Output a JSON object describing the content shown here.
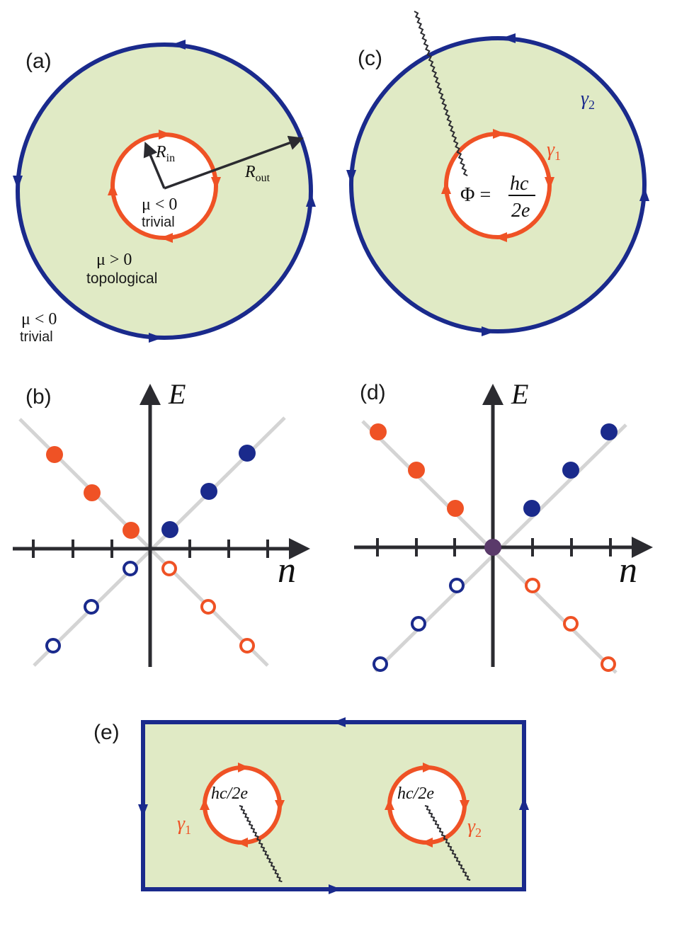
{
  "colors": {
    "blue": "#1a2a8c",
    "red": "#ef5225",
    "green_fill": "#e0eac5",
    "axis": "#2b2b30",
    "grey_line": "#d4d4d4",
    "purple": "#5a3a6a"
  },
  "panel_a": {
    "label": "(a)",
    "r_in": "R",
    "r_in_sub": "in",
    "r_out": "R",
    "r_out_sub": "out",
    "mu_inner": "μ < 0",
    "inner_word": "trivial",
    "mu_mid": "μ > 0",
    "mid_word": "topological",
    "mu_outer": "μ < 0",
    "outer_word": "trivial"
  },
  "panel_b": {
    "label": "(b)",
    "y_axis": "E",
    "x_axis": "n"
  },
  "panel_c": {
    "label": "(c)",
    "gamma1": "γ",
    "gamma1_sub": "1",
    "gamma2": "γ",
    "gamma2_sub": "2",
    "phi": "Φ =",
    "frac_num": "hc",
    "frac_den": "2e"
  },
  "panel_d": {
    "label": "(d)",
    "y_axis": "E",
    "x_axis": "n"
  },
  "panel_e": {
    "label": "(e)",
    "flux_left": "hc/2e",
    "flux_right": "hc/2e",
    "gamma1": "γ",
    "gamma1_sub": "1",
    "gamma2": "γ",
    "gamma2_sub": "2"
  }
}
